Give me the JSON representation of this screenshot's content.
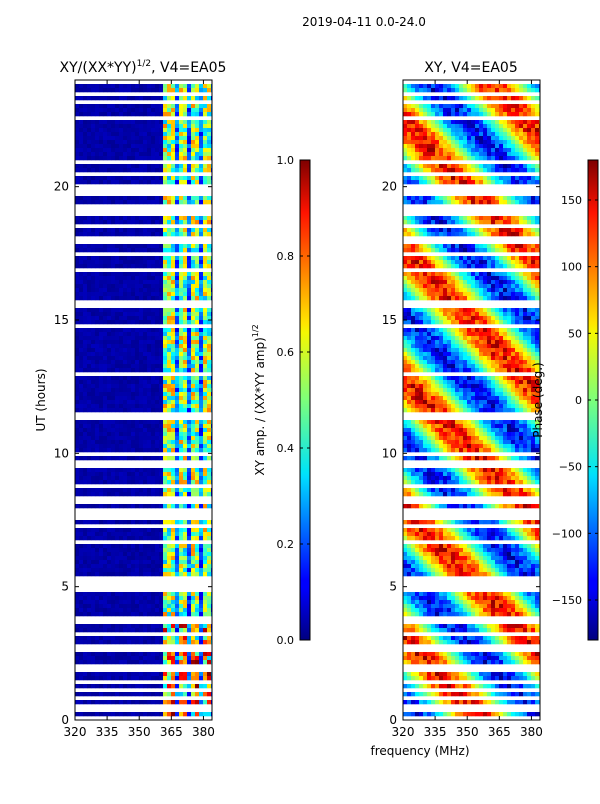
{
  "suptitle": "2019-04-11 0.0-24.0",
  "xlabel_shared": "frequency (MHz)",
  "chart_data": [
    {
      "type": "heatmap",
      "title": "XY/(XX*YY)",
      "title_sup": "1/2",
      "title_suffix": ", V4=EA05",
      "xlabel": "",
      "ylabel": "UT (hours)",
      "xlim": [
        320,
        384
      ],
      "ylim": [
        0,
        24
      ],
      "xticks": [
        320,
        335,
        350,
        365,
        380
      ],
      "xtick_labels": [
        "320",
        "335",
        "350",
        "365",
        "380"
      ],
      "yticks": [
        0,
        5,
        10,
        15,
        20
      ],
      "ytick_labels": [
        "0",
        "5",
        "10",
        "15",
        "20"
      ],
      "colorbar": {
        "label": "XY amp. / (XX*YY amp)",
        "label_sup": "1/2",
        "range": [
          0.0,
          1.0
        ],
        "ticks": [
          0.0,
          0.2,
          0.4,
          0.6,
          0.8,
          1.0
        ],
        "tick_labels": [
          "0.0",
          "0.2",
          "0.4",
          "0.6",
          "0.8",
          "1.0"
        ],
        "colormap": "jet"
      }
    },
    {
      "type": "heatmap",
      "title": "XY, V4=EA05",
      "xlabel": "frequency (MHz)",
      "ylabel": "",
      "xlim": [
        320,
        384
      ],
      "ylim": [
        0,
        24
      ],
      "xticks": [
        320,
        335,
        350,
        365,
        380
      ],
      "xtick_labels": [
        "320",
        "335",
        "350",
        "365",
        "380"
      ],
      "yticks": [
        0,
        5,
        10,
        15,
        20
      ],
      "ytick_labels": [
        "0",
        "5",
        "10",
        "15",
        "20"
      ],
      "colorbar": {
        "label": "Phase (deg.)",
        "range": [
          -180,
          180
        ],
        "ticks": [
          -150,
          -100,
          -50,
          0,
          50,
          100,
          150
        ],
        "tick_labels": [
          "−150",
          "−100",
          "−50",
          "0",
          "50",
          "100",
          "150"
        ],
        "colormap": "jet"
      }
    }
  ]
}
